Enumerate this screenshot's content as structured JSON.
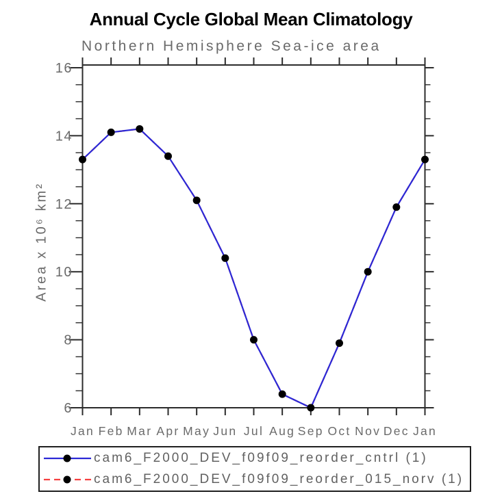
{
  "chart_data": {
    "type": "line",
    "title": "Annual Cycle Global Mean Climatology",
    "subtitle": "Northern Hemisphere Sea-ice area",
    "ylabel": "Area x 10⁶ km²",
    "xlabel": "",
    "categories": [
      "Jan",
      "Feb",
      "Mar",
      "Apr",
      "May",
      "Jun",
      "Jul",
      "Aug",
      "Sep",
      "Oct",
      "Nov",
      "Dec",
      "Jan"
    ],
    "series": [
      {
        "name": "cam6_F2000_DEV_f09f09_reorder_cntrl (1)",
        "values": [
          13.3,
          14.1,
          14.2,
          13.4,
          12.1,
          10.4,
          8.0,
          6.4,
          6.0,
          7.9,
          10.0,
          11.9,
          13.3
        ],
        "color": "#2b28d6",
        "style": "solid",
        "marker": "filled-circle"
      },
      {
        "name": "cam6_F2000_DEV_f09f09_reorder_015_norv (1)",
        "values": [
          13.3,
          14.1,
          14.2,
          13.4,
          12.1,
          10.4,
          8.0,
          6.4,
          6.0,
          7.9,
          10.0,
          11.9,
          13.3
        ],
        "color": "#f54040",
        "style": "dashed",
        "marker": "filled-circle"
      }
    ],
    "marker_color": "#000000",
    "ylim": [
      6,
      16
    ],
    "y_major_step": 2,
    "y_minor_step": 0.5,
    "yticks": [
      6,
      8,
      10,
      12,
      14,
      16
    ],
    "grid": false,
    "legend_position": "bottom"
  },
  "colors": {
    "axis": "#2b2b2b",
    "tick_text": "#6a6a6a",
    "title_text": "#000000",
    "subtitle_text": "#6a6a6a",
    "legend_text": "#616161",
    "background": "#ffffff"
  }
}
